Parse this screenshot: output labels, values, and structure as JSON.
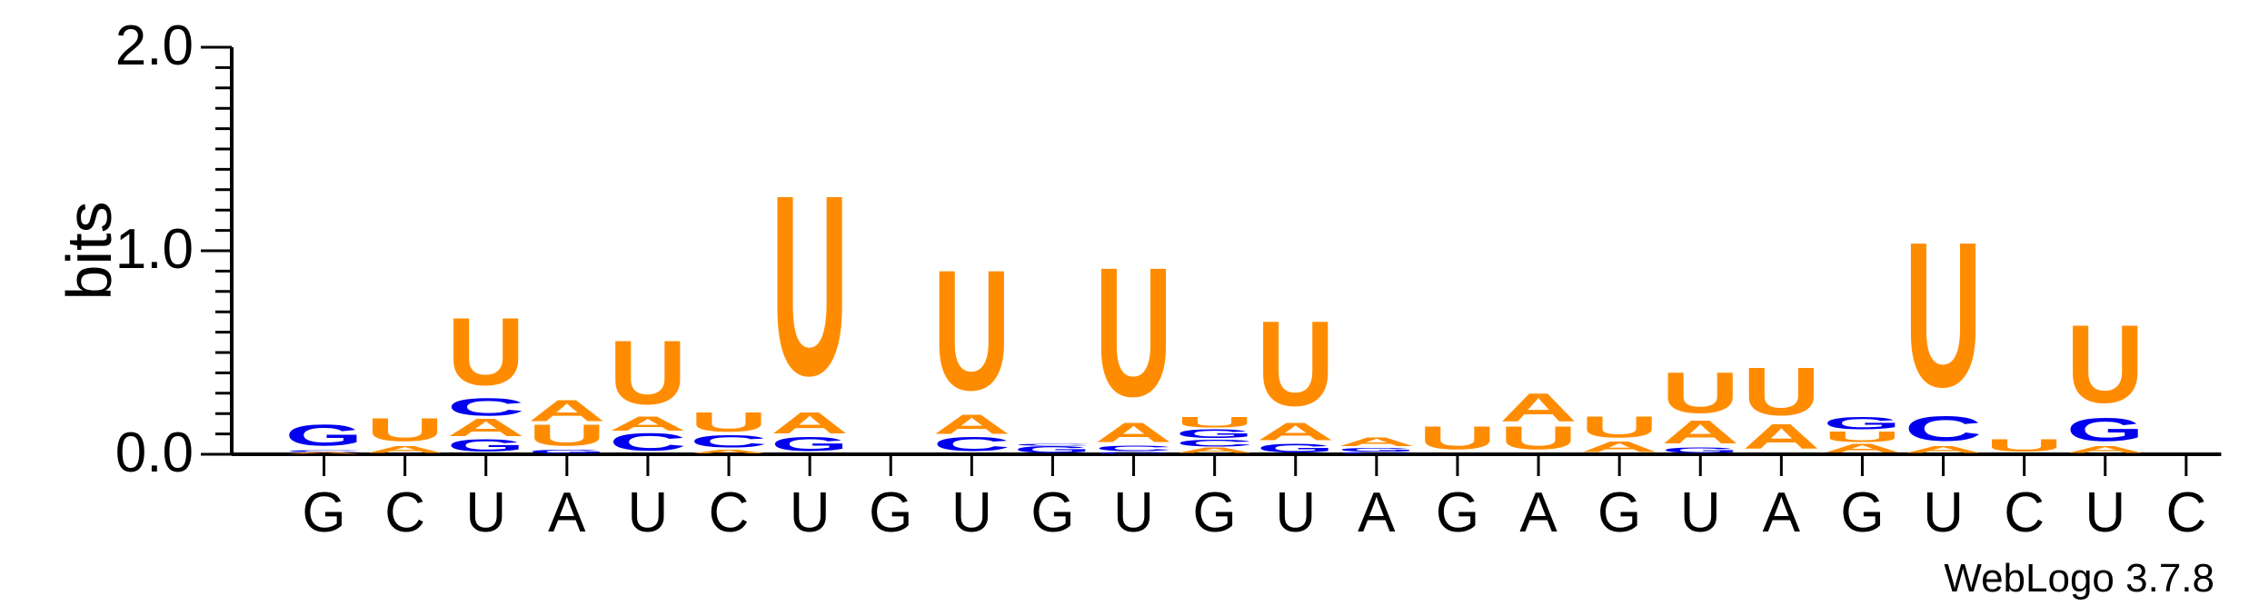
{
  "chart_data": {
    "type": "sequence-logo",
    "ylabel": "bits",
    "ylim": [
      0,
      2.0
    ],
    "yticks": [
      "0.0",
      "1.0",
      "2.0"
    ],
    "colors": {
      "U": "#ff8c00",
      "A": "#ff8c00",
      "C": "#0000ee",
      "G": "#0000ee"
    },
    "consensus": [
      "G",
      "C",
      "U",
      "A",
      "U",
      "C",
      "U",
      "G",
      "U",
      "G",
      "U",
      "G",
      "U",
      "A",
      "G",
      "A",
      "G",
      "U",
      "A",
      "G",
      "U",
      "C",
      "U",
      "C"
    ],
    "positions": [
      [
        {
          "b": "A",
          "h": 0.01
        },
        {
          "b": "C",
          "h": 0.01
        },
        {
          "b": "G",
          "h": 0.12
        }
      ],
      [
        {
          "b": "A",
          "h": 0.04
        },
        {
          "b": "U",
          "h": 0.13
        }
      ],
      [
        {
          "b": "G",
          "h": 0.07
        },
        {
          "b": "A",
          "h": 0.1
        },
        {
          "b": "C",
          "h": 0.1
        },
        {
          "b": "U",
          "h": 0.38
        }
      ],
      [
        {
          "b": "G",
          "h": 0.02
        },
        {
          "b": "U",
          "h": 0.12
        },
        {
          "b": "A",
          "h": 0.12
        }
      ],
      [
        {
          "b": "C",
          "h": 0.1
        },
        {
          "b": "A",
          "h": 0.08
        },
        {
          "b": "U",
          "h": 0.36
        }
      ],
      [
        {
          "b": "A",
          "h": 0.02
        },
        {
          "b": "C",
          "h": 0.07
        },
        {
          "b": "U",
          "h": 0.11
        }
      ],
      [
        {
          "b": "G",
          "h": 0.08
        },
        {
          "b": "A",
          "h": 0.12
        },
        {
          "b": "U",
          "h": 1.02
        }
      ],
      [],
      [
        {
          "b": "C",
          "h": 0.08
        },
        {
          "b": "A",
          "h": 0.11
        },
        {
          "b": "U",
          "h": 0.68
        }
      ],
      [
        {
          "b": "G",
          "h": 0.04
        },
        {
          "b": "C",
          "h": 0.01
        }
      ],
      [
        {
          "b": "G",
          "h": 0.01
        },
        {
          "b": "C",
          "h": 0.03
        },
        {
          "b": "A",
          "h": 0.11
        },
        {
          "b": "U",
          "h": 0.73
        }
      ],
      [
        {
          "b": "A",
          "h": 0.03
        },
        {
          "b": "C",
          "h": 0.04
        },
        {
          "b": "G",
          "h": 0.05
        },
        {
          "b": "U",
          "h": 0.06
        }
      ],
      [
        {
          "b": "G",
          "h": 0.05
        },
        {
          "b": "A",
          "h": 0.1
        },
        {
          "b": "U",
          "h": 0.48
        }
      ],
      [
        {
          "b": "C",
          "h": 0.01
        },
        {
          "b": "G",
          "h": 0.02
        },
        {
          "b": "A",
          "h": 0.05
        }
      ],
      [
        {
          "b": "U",
          "h": 0.13
        }
      ],
      [
        {
          "b": "U",
          "h": 0.13
        },
        {
          "b": "A",
          "h": 0.16
        }
      ],
      [
        {
          "b": "A",
          "h": 0.06
        },
        {
          "b": "U",
          "h": 0.12
        }
      ],
      [
        {
          "b": "G",
          "h": 0.03
        },
        {
          "b": "A",
          "h": 0.13
        },
        {
          "b": "U",
          "h": 0.23
        }
      ],
      [
        {
          "b": "A",
          "h": 0.14
        },
        {
          "b": "U",
          "h": 0.27
        }
      ],
      [
        {
          "b": "A",
          "h": 0.05
        },
        {
          "b": "U",
          "h": 0.06
        },
        {
          "b": "G",
          "h": 0.07
        }
      ],
      [
        {
          "b": "A",
          "h": 0.04
        },
        {
          "b": "C",
          "h": 0.14
        },
        {
          "b": "U",
          "h": 0.82
        }
      ],
      [
        {
          "b": "U",
          "h": 0.07
        }
      ],
      [
        {
          "b": "A",
          "h": 0.04
        },
        {
          "b": "G",
          "h": 0.13
        },
        {
          "b": "U",
          "h": 0.44
        }
      ],
      []
    ]
  },
  "credit": "WebLogo 3.7.8"
}
